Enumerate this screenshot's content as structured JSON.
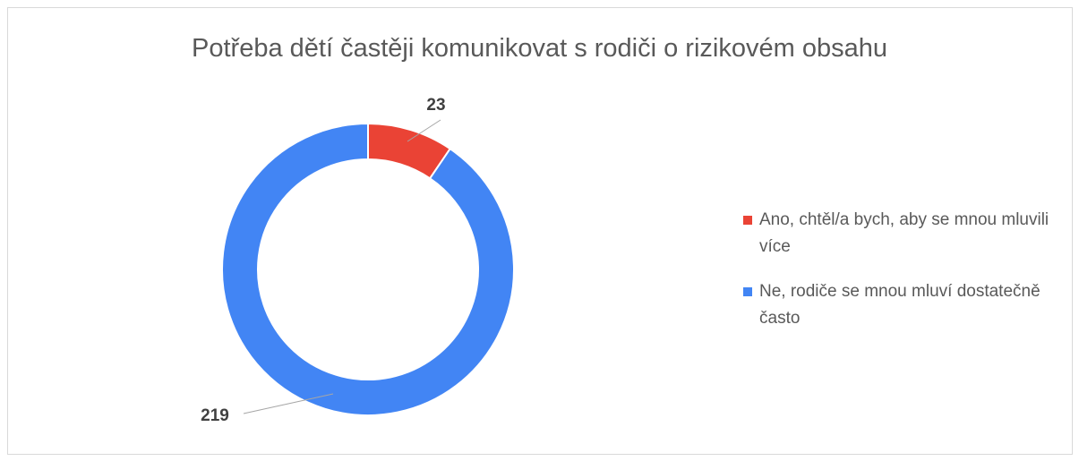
{
  "chart_data": {
    "type": "pie",
    "title": "Potřeba dětí častěji komunikovat s rodiči o rizikovém obsahu",
    "categories": [
      "Ano, chtěl/a bych, aby se mnou mluvili více",
      "Ne, rodiče se mnou mluví dostatečně často"
    ],
    "values": [
      23,
      219
    ],
    "colors": [
      "#ea4335",
      "#4285f4"
    ],
    "donut": true,
    "legend": "right"
  }
}
